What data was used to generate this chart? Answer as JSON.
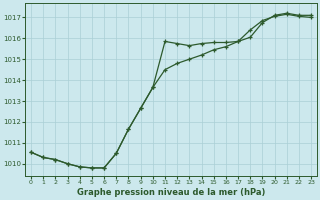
{
  "title": "Graphe pression niveau de la mer (hPa)",
  "bg_color": "#cce8ed",
  "grid_color": "#aacfd6",
  "line_color": "#2d5a2d",
  "x_ticks": [
    0,
    1,
    2,
    3,
    4,
    5,
    6,
    7,
    8,
    9,
    10,
    11,
    12,
    13,
    14,
    15,
    16,
    17,
    18,
    19,
    20,
    21,
    22,
    23
  ],
  "y_ticks": [
    1010,
    1011,
    1012,
    1013,
    1014,
    1015,
    1016,
    1017
  ],
  "ylim": [
    1009.4,
    1017.7
  ],
  "xlim": [
    -0.5,
    23.5
  ],
  "series1": [
    1010.55,
    1010.3,
    1010.2,
    1010.0,
    1009.85,
    1009.8,
    1009.8,
    1010.5,
    1011.65,
    1012.65,
    1013.65,
    1015.85,
    1015.75,
    1015.65,
    1015.75,
    1015.8,
    1015.8,
    1015.85,
    1016.05,
    1016.75,
    1017.1,
    1017.2,
    1017.1,
    1017.1
  ],
  "series2": [
    1010.55,
    1010.3,
    1010.2,
    1010.0,
    1009.85,
    1009.8,
    1009.8,
    1010.5,
    1011.65,
    1012.65,
    1013.65,
    1014.5,
    1014.8,
    1015.0,
    1015.2,
    1015.45,
    1015.6,
    1015.85,
    1016.4,
    1016.85,
    1017.05,
    1017.15,
    1017.05,
    1017.0
  ]
}
